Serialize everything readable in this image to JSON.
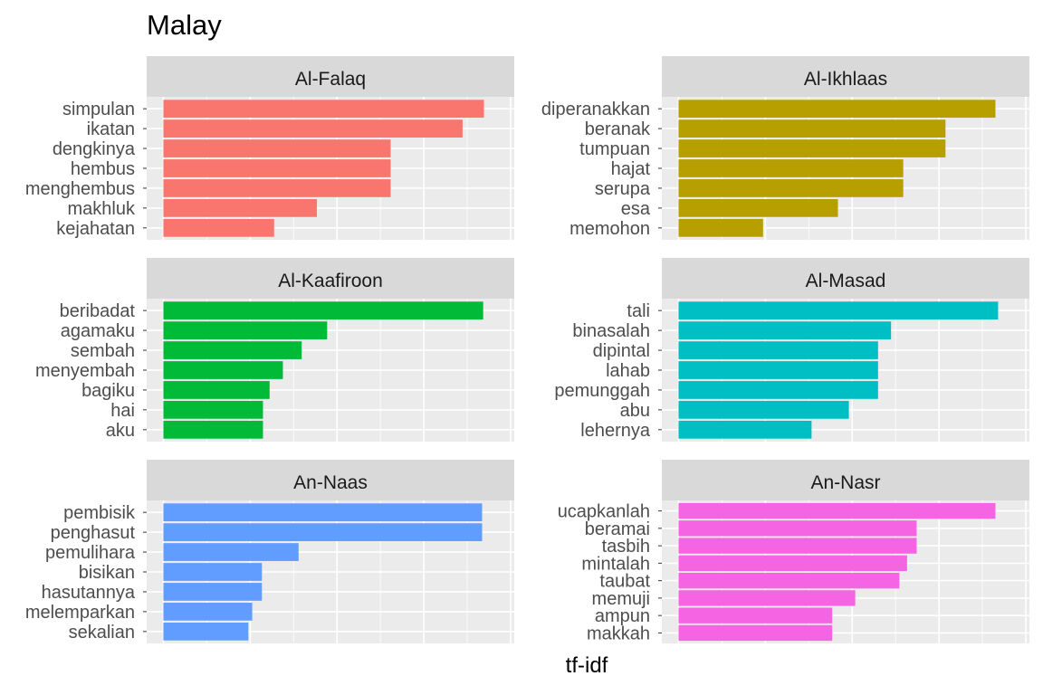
{
  "chart_data": {
    "type": "bar",
    "orientation": "horizontal",
    "title": "Malay",
    "xlabel": "tf-idf",
    "ylabel": "",
    "grid": true,
    "facets": [
      {
        "name": "Al-Falaq",
        "color": "#F8766D",
        "categories": [
          "simpulan",
          "ikatan",
          "dengkinya",
          "hembus",
          "menghembus",
          "makhluk",
          "kejahatan"
        ],
        "values": [
          0.165,
          0.154,
          0.117,
          0.117,
          0.117,
          0.079,
          0.057
        ],
        "xlim": [
          0,
          0.172
        ]
      },
      {
        "name": "Al-Ikhlaas",
        "color": "#B79F00",
        "categories": [
          "diperanakkan",
          "beranak",
          "tumpuan",
          "hajat",
          "serupa",
          "esa",
          "memohon"
        ],
        "values": [
          0.165,
          0.139,
          0.139,
          0.117,
          0.117,
          0.083,
          0.044
        ],
        "xlim": [
          0,
          0.174
        ]
      },
      {
        "name": "Al-Kaafiroon",
        "color": "#00BA38",
        "categories": [
          "beribadat",
          "agamaku",
          "sembah",
          "menyembah",
          "bagiku",
          "hai",
          "aku"
        ],
        "values": [
          0.289,
          0.148,
          0.125,
          0.108,
          0.096,
          0.09,
          0.09
        ],
        "xlim": [
          0,
          0.302
        ]
      },
      {
        "name": "Al-Masad",
        "color": "#00BFC4",
        "categories": [
          "tali",
          "binasalah",
          "dipintal",
          "lahab",
          "pemunggah",
          "abu",
          "lehernya"
        ],
        "values": [
          0.197,
          0.131,
          0.123,
          0.123,
          0.123,
          0.105,
          0.082
        ],
        "xlim": [
          0,
          0.206
        ]
      },
      {
        "name": "An-Naas",
        "color": "#619CFF",
        "categories": [
          "pembisik",
          "penghasut",
          "pemulihara",
          "bisikan",
          "hasutannya",
          "melemparkan",
          "sekalian"
        ],
        "values": [
          0.165,
          0.165,
          0.07,
          0.051,
          0.051,
          0.046,
          0.044
        ],
        "xlim": [
          0,
          0.173
        ]
      },
      {
        "name": "An-Nasr",
        "color": "#F564E3",
        "categories": [
          "ucapkanlah",
          "beramai",
          "tasbih",
          "mintalah",
          "taubat",
          "memuji",
          "ampun",
          "makkah"
        ],
        "values": [
          0.165,
          0.124,
          0.124,
          0.119,
          0.115,
          0.092,
          0.08,
          0.08
        ],
        "xlim": [
          0,
          0.174
        ]
      }
    ]
  }
}
